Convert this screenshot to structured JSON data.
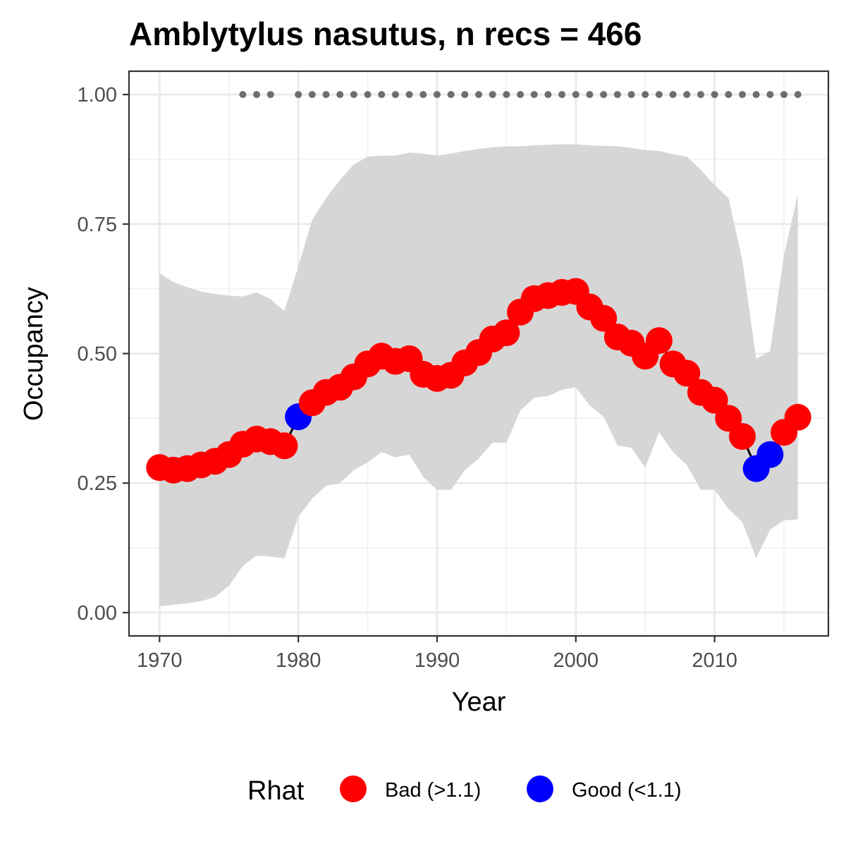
{
  "chart_data": {
    "type": "line",
    "title": "Amblytylus nasutus, n recs = 466",
    "xlabel": "Year",
    "ylabel": "Occupancy",
    "xlim": [
      1967.8,
      2018.2
    ],
    "ylim": [
      -0.045,
      1.045
    ],
    "grid": true,
    "x_ticks": [
      1970,
      1980,
      1990,
      2000,
      2010
    ],
    "x_tick_labels": [
      "1970",
      "1980",
      "1990",
      "2000",
      "2010"
    ],
    "y_ticks": [
      0,
      0.25,
      0.5,
      0.75,
      1.0
    ],
    "y_tick_labels": [
      "0.00",
      "0.25",
      "0.50",
      "0.75",
      "1.00"
    ],
    "legend": {
      "title": "Rhat",
      "position": "bottom",
      "entries": [
        {
          "label": "Bad (>1.1)",
          "color": "#ff0000"
        },
        {
          "label": "Good (<1.1)",
          "color": "#0000ff"
        }
      ]
    },
    "colors": {
      "bad": "#ff0000",
      "good": "#0000ff",
      "ribbon": "#d6d6d6",
      "line": "#000000",
      "record_points": "#6e6e6e"
    },
    "years": [
      1970,
      1971,
      1972,
      1973,
      1974,
      1975,
      1976,
      1977,
      1978,
      1979,
      1980,
      1981,
      1982,
      1983,
      1984,
      1985,
      1986,
      1987,
      1988,
      1989,
      1990,
      1991,
      1992,
      1993,
      1994,
      1995,
      1996,
      1997,
      1998,
      1999,
      2000,
      2001,
      2002,
      2003,
      2004,
      2005,
      2006,
      2007,
      2008,
      2009,
      2010,
      2011,
      2012,
      2013,
      2014,
      2015,
      2016
    ],
    "occupancy": [
      0.28,
      0.275,
      0.278,
      0.285,
      0.292,
      0.305,
      0.325,
      0.335,
      0.33,
      0.322,
      0.378,
      0.405,
      0.425,
      0.435,
      0.455,
      0.48,
      0.495,
      0.485,
      0.49,
      0.46,
      0.452,
      0.458,
      0.482,
      0.502,
      0.528,
      0.54,
      0.58,
      0.606,
      0.612,
      0.618,
      0.62,
      0.59,
      0.568,
      0.532,
      0.52,
      0.495,
      0.525,
      0.48,
      0.462,
      0.425,
      0.41,
      0.375,
      0.34,
      0.278,
      0.305,
      0.348,
      0.377
    ],
    "rhat_status": [
      "Bad",
      "Bad",
      "Bad",
      "Bad",
      "Bad",
      "Bad",
      "Bad",
      "Bad",
      "Bad",
      "Bad",
      "Good",
      "Bad",
      "Bad",
      "Bad",
      "Bad",
      "Bad",
      "Bad",
      "Bad",
      "Bad",
      "Bad",
      "Bad",
      "Bad",
      "Bad",
      "Bad",
      "Bad",
      "Bad",
      "Bad",
      "Bad",
      "Bad",
      "Bad",
      "Bad",
      "Bad",
      "Bad",
      "Bad",
      "Bad",
      "Bad",
      "Bad",
      "Bad",
      "Bad",
      "Bad",
      "Bad",
      "Bad",
      "Bad",
      "Good",
      "Good",
      "Bad",
      "Bad"
    ],
    "lower_ci": [
      0.012,
      0.015,
      0.018,
      0.022,
      0.03,
      0.052,
      0.09,
      0.11,
      0.108,
      0.105,
      0.185,
      0.22,
      0.245,
      0.25,
      0.275,
      0.29,
      0.31,
      0.3,
      0.305,
      0.262,
      0.237,
      0.237,
      0.275,
      0.297,
      0.328,
      0.328,
      0.39,
      0.415,
      0.418,
      0.43,
      0.435,
      0.4,
      0.378,
      0.323,
      0.318,
      0.28,
      0.348,
      0.31,
      0.285,
      0.237,
      0.237,
      0.2,
      0.175,
      0.105,
      0.16,
      0.178,
      0.18
    ],
    "upper_ci": [
      0.655,
      0.638,
      0.628,
      0.62,
      0.615,
      0.612,
      0.61,
      0.618,
      0.605,
      0.582,
      0.668,
      0.758,
      0.8,
      0.835,
      0.865,
      0.88,
      0.882,
      0.882,
      0.888,
      0.886,
      0.882,
      0.886,
      0.891,
      0.895,
      0.898,
      0.9,
      0.9,
      0.902,
      0.903,
      0.904,
      0.904,
      0.902,
      0.901,
      0.9,
      0.897,
      0.893,
      0.891,
      0.885,
      0.88,
      0.855,
      0.825,
      0.8,
      0.68,
      0.49,
      0.505,
      0.69,
      0.808
    ],
    "record_years": [
      1976,
      1977,
      1978,
      1980,
      1981,
      1982,
      1983,
      1984,
      1985,
      1986,
      1987,
      1988,
      1989,
      1990,
      1991,
      1992,
      1993,
      1994,
      1995,
      1996,
      1997,
      1998,
      1999,
      2000,
      2001,
      2002,
      2003,
      2004,
      2005,
      2006,
      2007,
      2008,
      2009,
      2010,
      2011,
      2012,
      2013,
      2014,
      2015,
      2016
    ],
    "record_level": 1.0
  }
}
